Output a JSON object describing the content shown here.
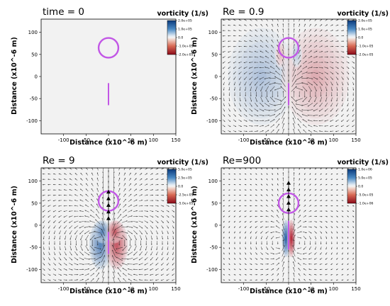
{
  "colors": {
    "background": "#f2f2f2",
    "marker": "#c257e6",
    "arrow": "#1a1a1a",
    "positive": "#1f5f9e",
    "negative": "#b2182b"
  },
  "chart_data": [
    {
      "type": "heatmap",
      "title": "time = 0",
      "xlabel": "Distance (x10^-6 m)",
      "ylabel": "Distance (x10^-6 m)",
      "colorbar_title": "vorticity (1/s)",
      "colorbar_ticks": [
        "2.0e+05",
        "1.0e+05",
        "0.0",
        "-1.0e+05",
        "-2.0e+05"
      ],
      "x_ticks": [
        "-100",
        "-50",
        "0",
        "50",
        "100",
        "150"
      ],
      "y_ticks": [
        "100",
        "50",
        "0",
        "-50",
        "-100"
      ],
      "xlim": [
        -150,
        150
      ],
      "ylim": [
        -130,
        130
      ],
      "ring": {
        "cx": 0,
        "cy": 65,
        "r": 22
      },
      "rod": {
        "x": 0,
        "y_top": -15,
        "y_bottom": -65
      },
      "vortex_strength": 0,
      "vortex_shape": "none",
      "arrow_scale": 0,
      "arrow_max_length": 0,
      "jet_strength": 0,
      "triangles_y": []
    },
    {
      "type": "heatmap",
      "title": "Re = 0.9",
      "xlabel": "Distance (x10^-6 m)",
      "ylabel": "Distance (x10^-6 m)",
      "colorbar_title": "vorticity (1/s)",
      "colorbar_ticks": [
        "2.0e+05",
        "1.0e+05",
        "0.0",
        "-1.0e+05",
        "-2.0e+05"
      ],
      "x_ticks": [
        "-100",
        "-50",
        "0",
        "50",
        "100",
        "150"
      ],
      "y_ticks": [
        "100",
        "50",
        "0",
        "-50",
        "-100"
      ],
      "xlim": [
        -150,
        150
      ],
      "ylim": [
        -130,
        130
      ],
      "ring": {
        "cx": 0,
        "cy": 65,
        "r": 22
      },
      "rod": {
        "x": 0,
        "y_top": -15,
        "y_bottom": -65
      },
      "vortex_strength": 0.35,
      "vortex_shape": "wide",
      "arrow_scale": 1.0,
      "arrow_max_length": 11,
      "jet_strength": 0.15,
      "triangles_y": []
    },
    {
      "type": "heatmap",
      "title": "Re = 9",
      "xlabel": "Distance (x10^-6 m)",
      "ylabel": "Distance (x10^-6 m)",
      "colorbar_title": "vorticity (1/s)",
      "colorbar_ticks": [
        "5.0e+05",
        "2.5e+05",
        "0.0",
        "-2.5e+05",
        "-5.0e+05"
      ],
      "x_ticks": [
        "-100",
        "-50",
        "0",
        "50",
        "100",
        "150"
      ],
      "y_ticks": [
        "100",
        "50",
        "0",
        "-50",
        "-100"
      ],
      "xlim": [
        -150,
        150
      ],
      "ylim": [
        -130,
        130
      ],
      "ring": {
        "cx": 0,
        "cy": 55,
        "r": 22
      },
      "rod": {
        "x": 0,
        "y_top": -15,
        "y_bottom": -65
      },
      "vortex_strength": 0.75,
      "vortex_shape": "medium",
      "arrow_scale": 1.0,
      "arrow_max_length": 11,
      "jet_strength": 0.5,
      "triangles_y": [
        75,
        60,
        45,
        30,
        15
      ]
    },
    {
      "type": "heatmap",
      "title": "Re=900",
      "xlabel": "Distance (x10^-6 m)",
      "ylabel": "Distance (x10^-6 m)",
      "colorbar_title": "vorticity (1/s)",
      "colorbar_ticks": [
        "1.0e+06",
        "5.0e+05",
        "0.0",
        "-5.0e+05",
        "-1.0e+06"
      ],
      "x_ticks": [
        "-100",
        "-50",
        "0",
        "50",
        "100",
        "150"
      ],
      "y_ticks": [
        "100",
        "50",
        "0",
        "-50",
        "-100"
      ],
      "xlim": [
        -150,
        150
      ],
      "ylim": [
        -130,
        130
      ],
      "ring": {
        "cx": 0,
        "cy": 50,
        "r": 22
      },
      "rod": {
        "x": 0,
        "y_top": 10,
        "y_bottom": -55
      },
      "vortex_strength": 1.0,
      "vortex_shape": "narrow",
      "arrow_scale": 0.6,
      "arrow_max_length": 9,
      "jet_strength": 0.7,
      "triangles_y": [
        95,
        80,
        65,
        50,
        35
      ]
    }
  ]
}
